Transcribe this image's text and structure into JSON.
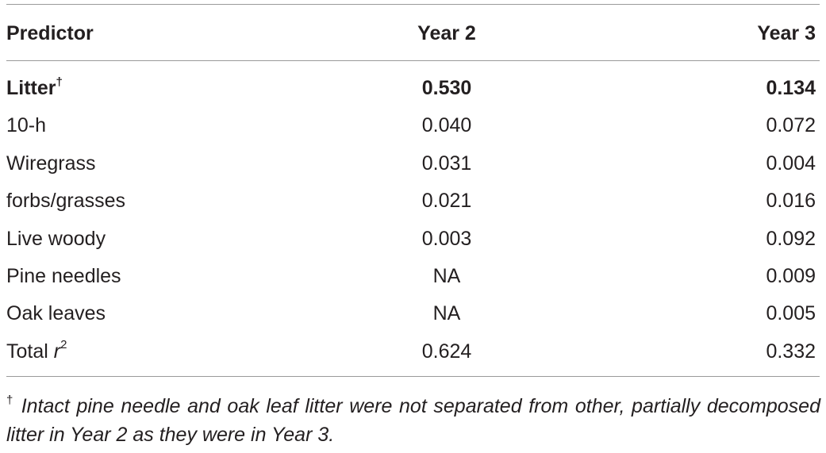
{
  "table": {
    "header": [
      "Predictor",
      "Year 2",
      "Year 3"
    ],
    "rows": [
      {
        "label": "Litter",
        "label_sup": "†",
        "year2": "0.530",
        "year3": "0.134",
        "bold": true
      },
      {
        "label": "10-h",
        "year2": "0.040",
        "year3": "0.072"
      },
      {
        "label": "Wiregrass",
        "year2": "0.031",
        "year3": "0.004"
      },
      {
        "label": "forbs/grasses",
        "year2": "0.021",
        "year3": "0.016"
      },
      {
        "label": "Live woody",
        "year2": "0.003",
        "year3": "0.092"
      },
      {
        "label": "Pine needles",
        "year2": "NA",
        "year3": "0.009"
      },
      {
        "label": "Oak leaves",
        "year2": "NA",
        "year3": "0.005"
      },
      {
        "label": "Total",
        "label_italic": "r",
        "label_sup": "2",
        "year2": "0.624",
        "year3": "0.332"
      }
    ]
  },
  "footnote": {
    "mark": "†",
    "text": "Intact pine needle and oak leaf litter were not separated from other, partially decomposed litter in Year 2 as they were in Year 3."
  }
}
